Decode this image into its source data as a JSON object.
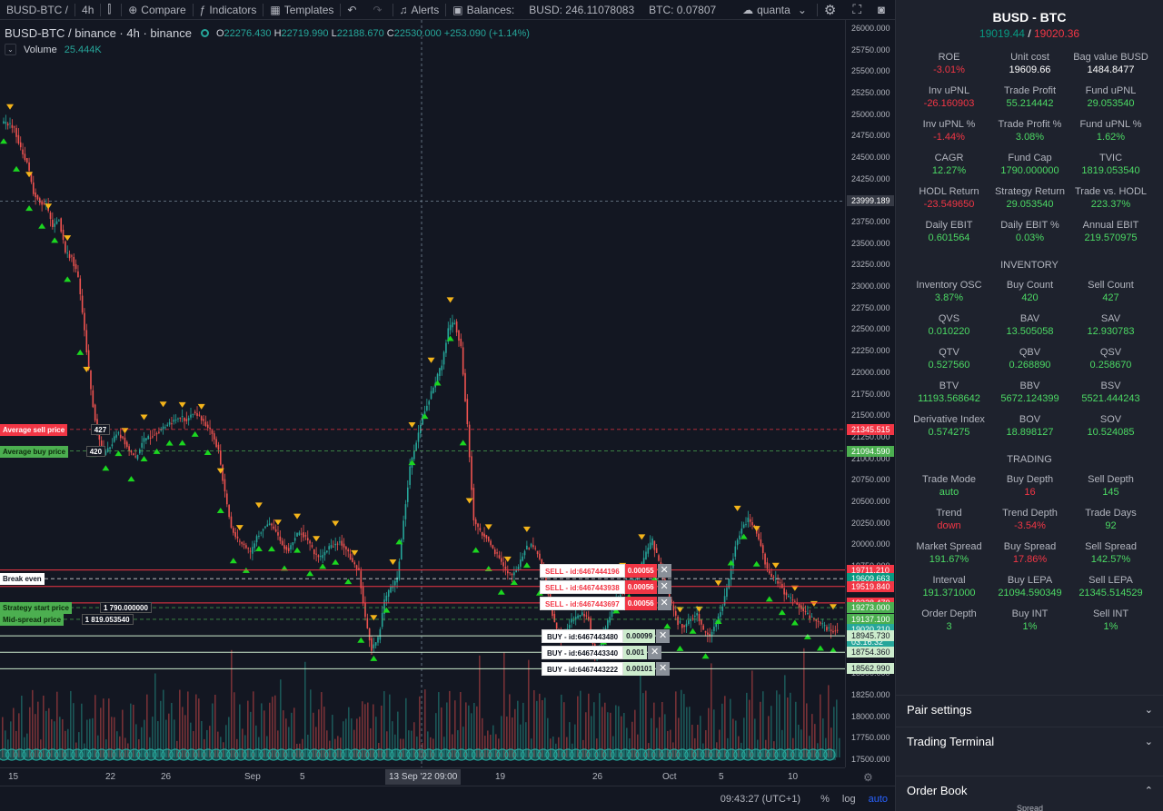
{
  "toolbar": {
    "symbol": "BUSD-BTC /",
    "interval": "4h",
    "compare": "Compare",
    "indicators": "Indicators",
    "templates": "Templates",
    "alerts": "Alerts",
    "balances_label": "Balances:",
    "busd_balance": "BUSD: 246.11078083",
    "btc_balance": "BTC: 0.07807",
    "user": "quanta"
  },
  "legend": {
    "symbol": "BUSD-BTC / binance · 4h · binance",
    "o_label": "O",
    "o": "22276.430",
    "h_label": "H",
    "h": "22719.990",
    "l_label": "L",
    "l": "22188.670",
    "c_label": "C",
    "c": "22530.000",
    "change": "+253.090 (+1.14%)",
    "volume_label": "Volume",
    "volume_value": "25.444K"
  },
  "chart_data": {
    "type": "candlestick",
    "price_ticks": [
      "26000.000",
      "25750.000",
      "25500.000",
      "25250.000",
      "25000.000",
      "24750.000",
      "24500.000",
      "24250.000",
      "24000.000",
      "23750.000",
      "23500.000",
      "23250.000",
      "23000.000",
      "22750.000",
      "22500.000",
      "22250.000",
      "22000.000",
      "21750.000",
      "21500.000",
      "21250.000",
      "21000.000",
      "20750.000",
      "20500.000",
      "20250.000",
      "20000.000",
      "19750.000",
      "19500.000",
      "19250.000",
      "19000.000",
      "18750.000",
      "18500.000",
      "18250.000",
      "18000.000",
      "17750.000",
      "17500.000"
    ],
    "time_ticks": [
      "15",
      "22",
      "26",
      "Sep",
      "5",
      "19",
      "26",
      "Oct",
      "5",
      "10"
    ],
    "crosshair_time": "13 Sep '22   09:00",
    "crosshair_price": "23999.189",
    "price_tags": [
      {
        "value": "21345.515",
        "color": "#f23645"
      },
      {
        "value": "21094.590",
        "color": "#4caf50"
      },
      {
        "value": "19711.210",
        "color": "#f23645"
      },
      {
        "value": "19609.663",
        "color": "#089981"
      },
      {
        "value": "19519.840",
        "color": "#f23645"
      },
      {
        "value": "19328.470",
        "color": "#f23645"
      },
      {
        "value": "19273.000",
        "color": "#4caf50"
      },
      {
        "value": "19137.100",
        "color": "#4caf50"
      },
      {
        "value": "19020.210",
        "color": "#26a69a"
      },
      {
        "value": "03:16:32",
        "color": "#26a69a"
      },
      {
        "value": "18945.730",
        "color": "#cdeccd"
      },
      {
        "value": "18754.360",
        "color": "#cdeccd"
      },
      {
        "value": "18562.990",
        "color": "#cdeccd"
      }
    ],
    "horizontal_lines": [
      {
        "label": "Average sell price",
        "count": "427",
        "price": 21345.515,
        "color": "#f23645"
      },
      {
        "label": "Average buy price",
        "count": "420",
        "price": 21094.59,
        "color": "#4caf50"
      },
      {
        "label": "Break even",
        "price": 19609.663,
        "color": "#ffffff"
      },
      {
        "label": "Strategy start price",
        "value": "1 790.000000",
        "price": 19273.0,
        "color": "#4caf50"
      },
      {
        "label": "Mid-spread price",
        "value": "1 819.053540",
        "price": 19137.1,
        "color": "#4caf50"
      }
    ],
    "orders": [
      {
        "side": "sell",
        "label": "SELL - id:6467444196",
        "qty": "0.00055",
        "price": 19711.21
      },
      {
        "side": "sell",
        "label": "SELL - id:6467443938",
        "qty": "0.00056",
        "price": 19519.84
      },
      {
        "side": "sell",
        "label": "SELL - id:6467443697",
        "qty": "0.00056",
        "price": 19328.47
      },
      {
        "side": "buy",
        "label": "BUY - id:6467443480",
        "qty": "0.00099",
        "price": 18945.73
      },
      {
        "side": "buy",
        "label": "BUY - id:6467443340",
        "qty": "0.001",
        "price": 18754.36
      },
      {
        "side": "buy",
        "label": "BUY - id:6467443222",
        "qty": "0.00101",
        "price": 18562.99
      }
    ],
    "close_path": [
      24900,
      24850,
      24600,
      24450,
      24100,
      24000,
      23950,
      23700,
      23800,
      23400,
      23350,
      23100,
      22500,
      21800,
      21300,
      21050,
      21150,
      21300,
      21250,
      21100,
      21000,
      21200,
      21250,
      21300,
      21350,
      21400,
      21450,
      21500,
      21450,
      21550,
      21500,
      21400,
      21300,
      21100,
      20600,
      20200,
      20050,
      20000,
      19900,
      20100,
      20200,
      20250,
      20150,
      20000,
      19950,
      20100,
      20150,
      20050,
      19900,
      19850,
      19950,
      20000,
      20050,
      19950,
      19800,
      19700,
      19150,
      18800,
      18900,
      19350,
      19500,
      19600,
      20300,
      20900,
      21200,
      21500,
      21700,
      21900,
      22100,
      22500,
      22600,
      22300,
      21400,
      20300,
      20150,
      20100,
      19950,
      19850,
      19700,
      19650,
      19750,
      19950,
      20000,
      19900,
      19700,
      19300,
      19000,
      18900,
      19100,
      19150,
      19200,
      19150,
      18700,
      18900,
      19100,
      19300,
      19450,
      19500,
      19600,
      19700,
      19900,
      20050,
      19800,
      19500,
      19300,
      19100,
      19050,
      19150,
      19200,
      19000,
      18950,
      19100,
      19300,
      19600,
      20000,
      20200,
      20300,
      20200,
      20000,
      19700,
      19600,
      19550,
      19400,
      19350,
      19300,
      19200,
      19150,
      19100,
      19050,
      19000,
      19020
    ],
    "date_axis": {
      "start": "2022-08-12",
      "end": "2022-10-12"
    }
  },
  "panel": {
    "title": "BUSD - BTC",
    "bid": "19019.44",
    "slash": " / ",
    "ask": "19020.36",
    "stats": [
      {
        "k": "ROE",
        "v": "-3.01%",
        "c": "neg"
      },
      {
        "k": "Unit cost",
        "v": "19609.66",
        "c": "neu"
      },
      {
        "k": "Bag value BUSD",
        "v": "1484.8477",
        "c": "neu"
      },
      {
        "k": "Inv uPNL",
        "v": "-26.160903",
        "c": "neg"
      },
      {
        "k": "Trade Profit",
        "v": "55.214442",
        "c": "pos"
      },
      {
        "k": "Fund uPNL",
        "v": "29.053540",
        "c": "pos"
      },
      {
        "k": "Inv uPNL %",
        "v": "-1.44%",
        "c": "neg"
      },
      {
        "k": "Trade Profit %",
        "v": "3.08%",
        "c": "pos"
      },
      {
        "k": "Fund uPNL %",
        "v": "1.62%",
        "c": "pos"
      },
      {
        "k": "CAGR",
        "v": "12.27%",
        "c": "pos"
      },
      {
        "k": "Fund Cap",
        "v": "1790.000000",
        "c": "pos"
      },
      {
        "k": "TVIC",
        "v": "1819.053540",
        "c": "pos"
      },
      {
        "k": "HODL Return",
        "v": "-23.549650",
        "c": "neg"
      },
      {
        "k": "Strategy Return",
        "v": "29.053540",
        "c": "pos"
      },
      {
        "k": "Trade vs. HODL",
        "v": "223.37%",
        "c": "pos"
      },
      {
        "k": "Daily EBIT",
        "v": "0.601564",
        "c": "pos"
      },
      {
        "k": "Daily EBIT %",
        "v": "0.03%",
        "c": "pos"
      },
      {
        "k": "Annual EBIT",
        "v": "219.570975",
        "c": "pos"
      }
    ],
    "inventory_title": "INVENTORY",
    "inventory": [
      {
        "k": "Inventory OSC",
        "v": "3.87%",
        "c": "pos"
      },
      {
        "k": "Buy Count",
        "v": "420",
        "c": "pos"
      },
      {
        "k": "Sell Count",
        "v": "427",
        "c": "pos"
      },
      {
        "k": "QVS",
        "v": "0.010220",
        "c": "pos"
      },
      {
        "k": "BAV",
        "v": "13.505058",
        "c": "pos"
      },
      {
        "k": "SAV",
        "v": "12.930783",
        "c": "pos"
      },
      {
        "k": "QTV",
        "v": "0.527560",
        "c": "pos"
      },
      {
        "k": "QBV",
        "v": "0.268890",
        "c": "pos"
      },
      {
        "k": "QSV",
        "v": "0.258670",
        "c": "pos"
      },
      {
        "k": "BTV",
        "v": "11193.568642",
        "c": "pos"
      },
      {
        "k": "BBV",
        "v": "5672.124399",
        "c": "pos"
      },
      {
        "k": "BSV",
        "v": "5521.444243",
        "c": "pos"
      },
      {
        "k": "Derivative Index",
        "v": "0.574275",
        "c": "pos"
      },
      {
        "k": "BOV",
        "v": "18.898127",
        "c": "pos"
      },
      {
        "k": "SOV",
        "v": "10.524085",
        "c": "pos"
      }
    ],
    "trading_title": "TRADING",
    "trading": [
      {
        "k": "Trade Mode",
        "v": "auto",
        "c": "pos"
      },
      {
        "k": "Buy Depth",
        "v": "16",
        "c": "neg"
      },
      {
        "k": "Sell Depth",
        "v": "145",
        "c": "pos"
      },
      {
        "k": "Trend",
        "v": "down",
        "c": "neg"
      },
      {
        "k": "Trend Depth",
        "v": "-3.54%",
        "c": "neg"
      },
      {
        "k": "Trade Days",
        "v": "92",
        "c": "pos"
      },
      {
        "k": "Market Spread",
        "v": "191.67%",
        "c": "pos"
      },
      {
        "k": "Buy Spread",
        "v": "17.86%",
        "c": "neg"
      },
      {
        "k": "Sell Spread",
        "v": "142.57%",
        "c": "pos"
      },
      {
        "k": "Interval",
        "v": "191.371000",
        "c": "pos"
      },
      {
        "k": "Buy LEPA",
        "v": "21094.590349",
        "c": "pos"
      },
      {
        "k": "Sell LEPA",
        "v": "21345.514529",
        "c": "pos"
      },
      {
        "k": "Order Depth",
        "v": "3",
        "c": "pos"
      },
      {
        "k": "Buy INT",
        "v": "1%",
        "c": "pos"
      },
      {
        "k": "Sell INT",
        "v": "1%",
        "c": "pos"
      }
    ],
    "pair_settings": "Pair settings",
    "trading_terminal": "Trading Terminal",
    "order_book": "Order Book",
    "order_book_sub": "Spread"
  },
  "status": {
    "time": "09:43:27 (UTC+1)",
    "percent": "%",
    "log": "log",
    "auto": "auto"
  }
}
